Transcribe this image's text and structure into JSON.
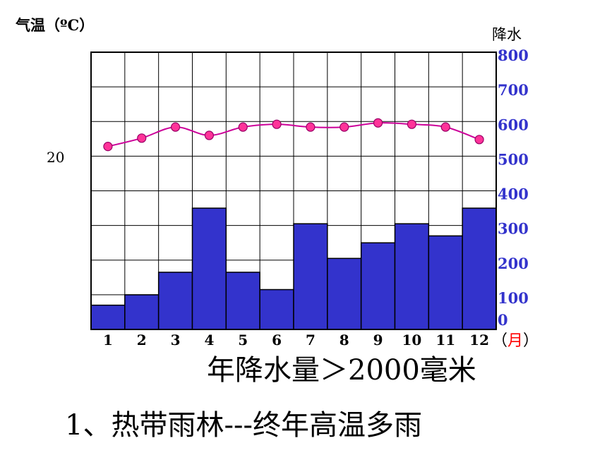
{
  "chart_data": {
    "type": "bar+line",
    "temp_axis_label": "气温（ºC）",
    "precip_axis_label": "降水",
    "temp_tick_label": "20",
    "precip_ticks": [
      0,
      100,
      200,
      300,
      400,
      500,
      600,
      700,
      800
    ],
    "months": [
      "1",
      "2",
      "3",
      "4",
      "5",
      "6",
      "7",
      "8",
      "9",
      "10",
      "11",
      "12"
    ],
    "month_unit": "月",
    "precipitation_mm": [
      70,
      100,
      165,
      350,
      165,
      115,
      305,
      205,
      250,
      305,
      270,
      350
    ],
    "temperature_c": [
      25.2,
      25.8,
      26.6,
      26.0,
      26.6,
      26.8,
      26.6,
      26.6,
      26.9,
      26.8,
      26.6,
      25.7
    ],
    "temp_ylim": [
      12,
      32
    ],
    "precip_ylim": [
      0,
      800
    ],
    "grid": true,
    "colors": {
      "bar": "#3333cc",
      "line": "#cc0099",
      "marker": "#ff3399",
      "precip_ticks": "#3333cc",
      "month_unit": "#ff0000"
    }
  },
  "caption": "年降水量＞2000毫米",
  "subtitle": "1、热带雨林---终年高温多雨"
}
